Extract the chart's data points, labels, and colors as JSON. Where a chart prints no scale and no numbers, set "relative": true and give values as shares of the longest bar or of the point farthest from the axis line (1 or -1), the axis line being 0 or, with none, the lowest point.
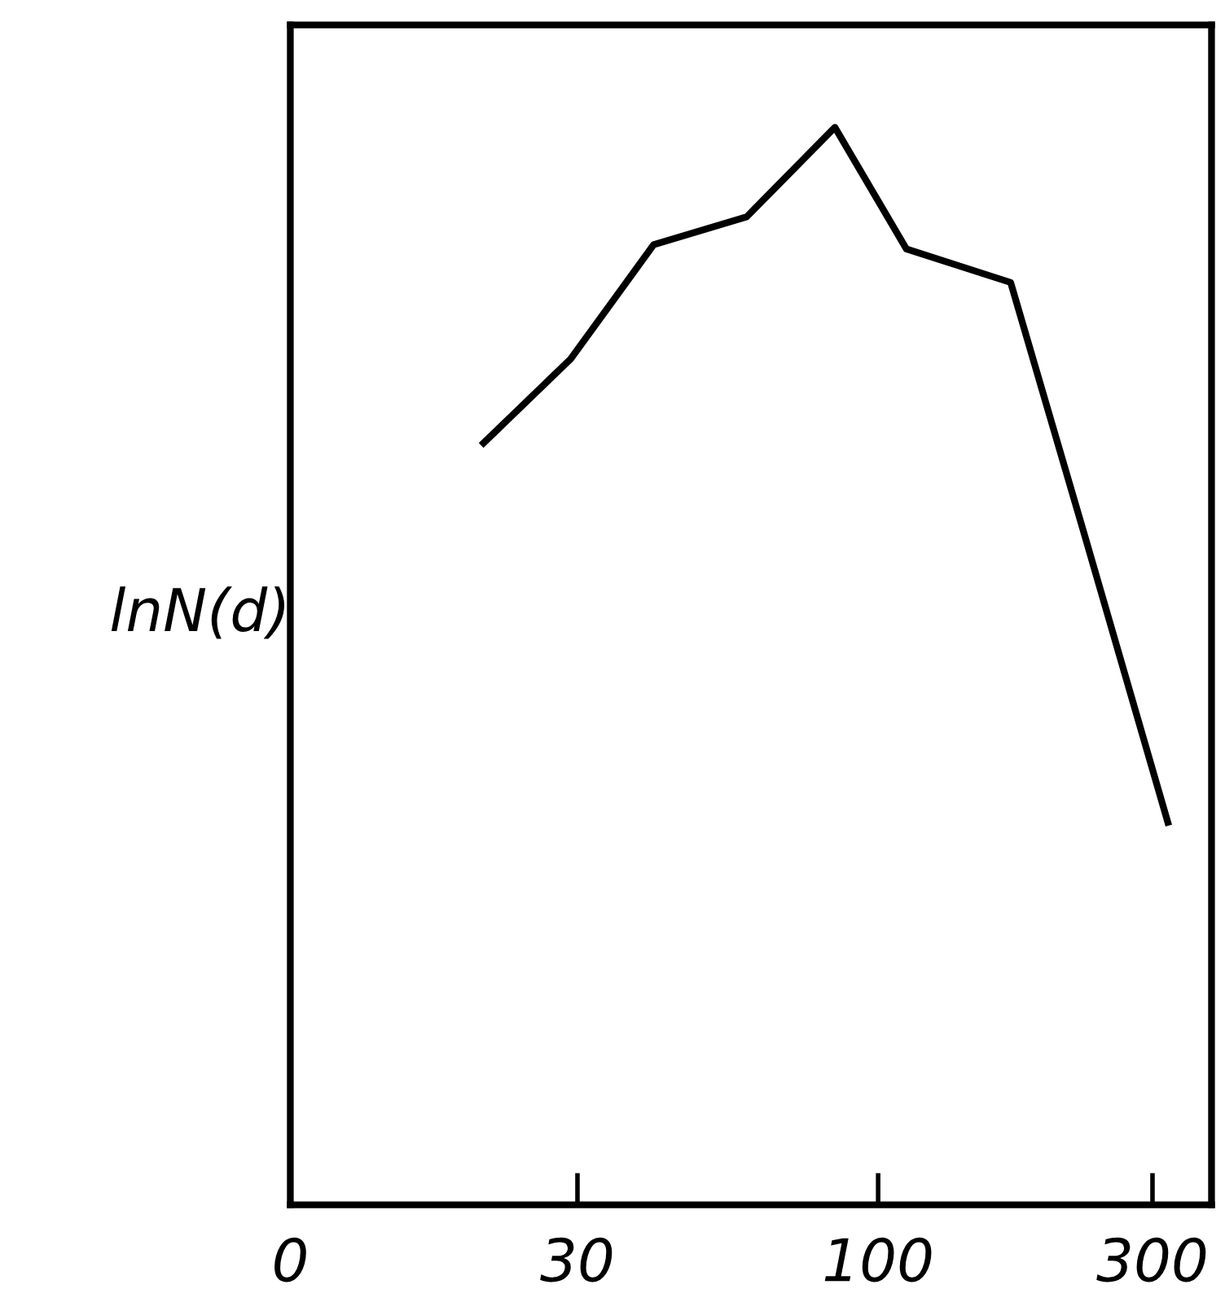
{
  "chart_data": {
    "type": "line",
    "ylabel": "lnN(d)",
    "relative": true,
    "log": "x",
    "x": [
      20.6,
      29.2,
      40.7,
      59.1,
      84.1,
      112,
      170,
      227,
      319
    ],
    "series": [
      {
        "color": "#000000",
        "values": [
          0.707,
          0.785,
          0.891,
          0.917,
          1,
          0.887,
          0.856,
          0.627,
          0.355
        ]
      }
    ],
    "xlim": [
      0,
      380
    ],
    "xticks": [
      0,
      30,
      100,
      300
    ],
    "tick_labels": "x",
    "grid": false,
    "legend": false,
    "marker": "none",
    "line_style": "solid"
  }
}
